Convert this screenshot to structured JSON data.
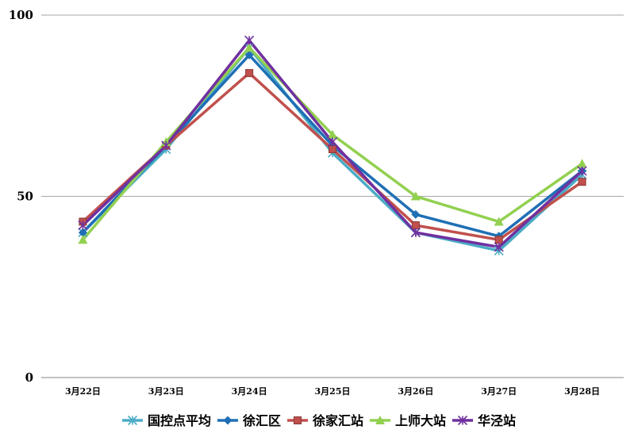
{
  "chart_data": {
    "type": "line",
    "categories": [
      "3月22日",
      "3月23日",
      "3月24日",
      "3月25日",
      "3月26日",
      "3月27日",
      "3月28日"
    ],
    "ylim": [
      0,
      100
    ],
    "yticks": [
      "0",
      "50",
      "100"
    ],
    "grid": true,
    "legend_position": "bottom",
    "series": [
      {
        "name": "国控点平均",
        "color": "#4bacc6",
        "marker": "star",
        "values": [
          40,
          63,
          91,
          62,
          40,
          35,
          56
        ]
      },
      {
        "name": "徐汇区",
        "color": "#1f6fb5",
        "marker": "diamond",
        "values": [
          40,
          64,
          89,
          64,
          45,
          39,
          57
        ]
      },
      {
        "name": "徐家汇站",
        "color": "#c0504d",
        "marker": "square",
        "values": [
          43,
          64,
          84,
          63,
          42,
          38,
          54
        ]
      },
      {
        "name": "上师大站",
        "color": "#92d050",
        "marker": "triangle",
        "values": [
          38,
          65,
          91,
          67,
          50,
          43,
          59
        ]
      },
      {
        "name": "华泾站",
        "color": "#7030a0",
        "marker": "star",
        "values": [
          42,
          64,
          93,
          65,
          40,
          36,
          57
        ]
      }
    ]
  }
}
